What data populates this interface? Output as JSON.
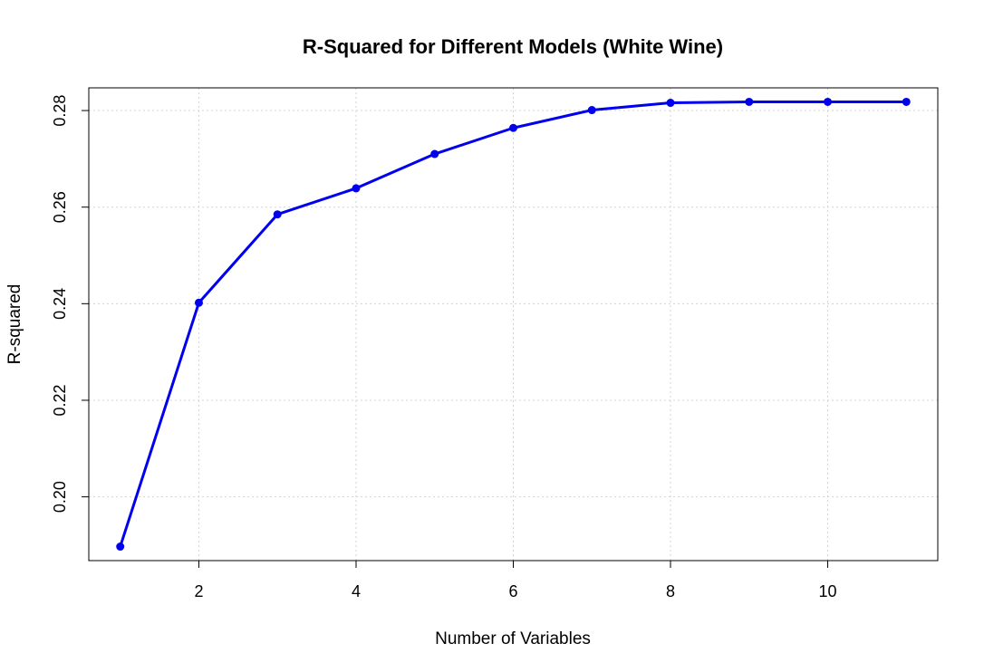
{
  "chart_data": {
    "type": "line",
    "title": "R-Squared for Different Models (White Wine)",
    "xlabel": "Number of Variables",
    "ylabel": "R-squared",
    "x": [
      1,
      2,
      3,
      4,
      5,
      6,
      7,
      8,
      9,
      10,
      11
    ],
    "series": [
      {
        "values": [
          0.1897,
          0.2402,
          0.2585,
          0.2639,
          0.271,
          0.2764,
          0.2801,
          0.2816,
          0.2818,
          0.2818,
          0.2818
        ]
      }
    ],
    "xticks": [
      2,
      4,
      6,
      8,
      10
    ],
    "xtick_labels": [
      "2",
      "4",
      "6",
      "8",
      "10"
    ],
    "yticks": [
      0.2,
      0.22,
      0.24,
      0.26,
      0.28
    ],
    "ytick_labels": [
      "0.20",
      "0.22",
      "0.24",
      "0.26",
      "0.28"
    ],
    "xlim": [
      0.6,
      11.4
    ],
    "ylim": [
      0.1868,
      0.2847
    ],
    "grid": true,
    "legend": "none",
    "line_color": "#0000ee",
    "grid_color": "#d3d3d3"
  }
}
